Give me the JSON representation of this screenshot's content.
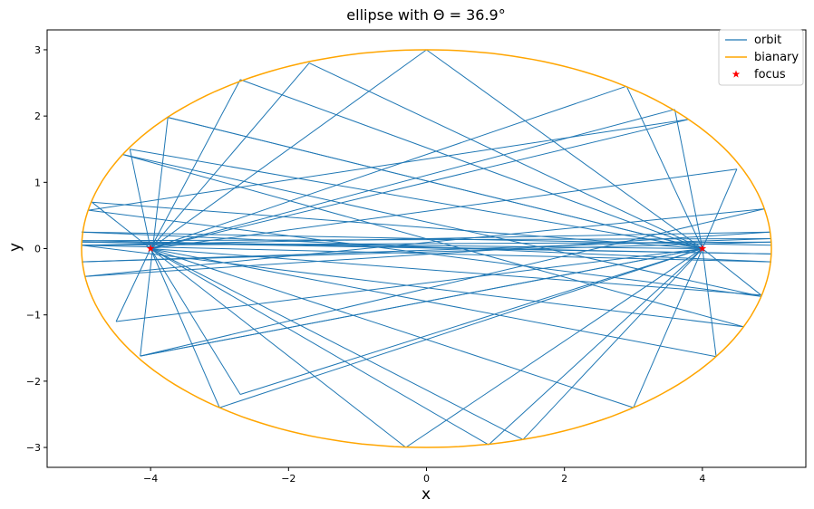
{
  "chart_data": {
    "type": "line",
    "title": "ellipse with Θ = 36.9°",
    "xlabel": "x",
    "ylabel": "y",
    "xlim": [
      -5.5,
      5.5
    ],
    "ylim": [
      -3.3,
      3.3
    ],
    "xticks": [
      -4,
      -2,
      0,
      2,
      4
    ],
    "yticks": [
      -3,
      -2,
      -1,
      0,
      1,
      2,
      3
    ],
    "x_tick_labels": [
      "−4",
      "−2",
      "0",
      "2",
      "4"
    ],
    "y_tick_labels": [
      "−3",
      "−2",
      "−1",
      "0",
      "1",
      "2",
      "3"
    ],
    "grid": false,
    "legend_position": "top-right",
    "ellipse": {
      "semi_major": 5,
      "semi_minor": 3,
      "center": [
        0,
        0
      ]
    },
    "series": [
      {
        "name": "orbit",
        "color": "#1f77b4",
        "style": "line",
        "note_type": "billiard trajectory bouncing between ellipse boundary points",
        "path_points": [
          [
            -3.75,
            1.98
          ],
          [
            4,
            0
          ],
          [
            -4.15,
            -1.62
          ],
          [
            4,
            0
          ],
          [
            -3.75,
            1.98
          ],
          [
            -4.15,
            -1.62
          ],
          [
            4.9,
            0.6
          ],
          [
            -4.95,
            -0.42
          ],
          [
            4.98,
            0.25
          ],
          [
            -5.0,
            0.05
          ],
          [
            4.6,
            -1.18
          ],
          [
            -4.4,
            1.42
          ],
          [
            4.85,
            -0.72
          ],
          [
            -4.9,
            0.58
          ],
          [
            3.8,
            1.95
          ],
          [
            -4.0,
            0
          ],
          [
            -1.7,
            2.8
          ],
          [
            4.0,
            0
          ],
          [
            -0.3,
            -3.0
          ],
          [
            -4.0,
            0
          ],
          [
            0.0,
            3.0
          ],
          [
            4.0,
            0
          ],
          [
            0.9,
            -2.96
          ],
          [
            -4.0,
            0
          ],
          [
            2.9,
            2.45
          ],
          [
            4.0,
            0
          ],
          [
            -2.7,
            -2.2
          ],
          [
            -4.0,
            0
          ],
          [
            3.6,
            2.1
          ],
          [
            4.0,
            0
          ],
          [
            -3.0,
            -2.4
          ],
          [
            -4.0,
            0
          ],
          [
            1.4,
            -2.88
          ],
          [
            4.0,
            0
          ],
          [
            -2.7,
            2.55
          ],
          [
            -4.0,
            0
          ],
          [
            3.0,
            -2.4
          ],
          [
            4.0,
            0
          ],
          [
            -4.3,
            1.5
          ],
          [
            -4.0,
            0
          ],
          [
            4.2,
            -1.63
          ],
          [
            4.0,
            0
          ],
          [
            -4.5,
            -1.1
          ],
          [
            -4.0,
            0
          ],
          [
            4.5,
            1.2
          ],
          [
            4.0,
            0
          ],
          [
            -4.85,
            0.7
          ],
          [
            -4.0,
            0
          ],
          [
            4.85,
            -0.7
          ],
          [
            4.0,
            0
          ],
          [
            -5.0,
            0.1
          ],
          [
            5.0,
            -0.08
          ],
          [
            -5.0,
            0.12
          ],
          [
            5.0,
            0.15
          ],
          [
            -5.0,
            -0.2
          ],
          [
            5.0,
            0.1
          ],
          [
            -5.0,
            0.05
          ],
          [
            5.0,
            -0.2
          ],
          [
            -5.0,
            0.25
          ],
          [
            5.0,
            0.05
          ]
        ]
      },
      {
        "name": "bianary",
        "color": "#ffa500",
        "style": "line"
      },
      {
        "name": "focus",
        "color": "#ff0000",
        "style": "marker-star",
        "x": [
          -4,
          4
        ],
        "y": [
          0,
          0
        ]
      }
    ]
  }
}
